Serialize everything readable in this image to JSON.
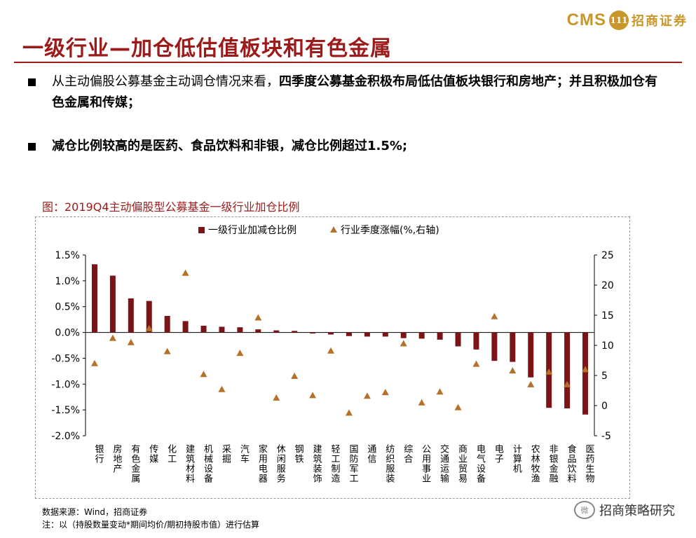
{
  "header": {
    "logo_latin": "CMS",
    "logo_seal": "111",
    "logo_cn": "招商证券",
    "title": "一级行业—加仓低估值板块和有色金属"
  },
  "bullets": [
    {
      "normal": "从主动偏股公募基金主动调仓情况来看，",
      "bold": "四季度公募基金积极布局低估值板块银行和房地产；并且积极加仓有色金属和传媒；"
    },
    {
      "normal": "",
      "bold": "减仓比例较高的是医药、食品饮料和非银，减仓比例超过1.5%;"
    }
  ],
  "figure": {
    "title": "图：2019Q4主动偏股型公募基金一级行业加仓比例"
  },
  "chart_data": {
    "type": "bar",
    "legend": {
      "bar": "一级行业加减仓比例",
      "marker": "行业季度涨幅(%,右轴)",
      "placement": "top-center"
    },
    "categories": [
      "银行",
      "房地产",
      "有色金属",
      "传媒",
      "化工",
      "建筑材料",
      "机械设备",
      "采掘",
      "汽车",
      "家用电器",
      "休闲服务",
      "钢铁",
      "建筑装饰",
      "轻工制造",
      "国防军工",
      "通信",
      "纺织服装",
      "综合",
      "公用事业",
      "交通运输",
      "商业贸易",
      "电气设备",
      "电子",
      "计算机",
      "农林牧渔",
      "非银金融",
      "食品饮料",
      "医药生物"
    ],
    "series": [
      {
        "name": "一级行业加减仓比例",
        "axis": "left",
        "unit": "%",
        "values": [
          1.32,
          1.1,
          0.66,
          0.61,
          0.32,
          0.22,
          0.13,
          0.11,
          0.1,
          0.06,
          0.04,
          0.03,
          -0.02,
          -0.04,
          -0.07,
          -0.08,
          -0.08,
          -0.11,
          -0.12,
          -0.14,
          -0.27,
          -0.33,
          -0.55,
          -0.57,
          -0.87,
          -1.46,
          -1.47,
          -1.59
        ]
      },
      {
        "name": "行业季度涨幅(%,右轴)",
        "axis": "right",
        "values": [
          7.0,
          11.2,
          10.5,
          12.8,
          9.0,
          22.0,
          5.2,
          2.7,
          8.7,
          14.6,
          1.3,
          4.9,
          1.7,
          9.1,
          -1.2,
          1.6,
          2.2,
          10.3,
          0.5,
          2.3,
          -0.3,
          6.9,
          14.8,
          5.8,
          3.5,
          5.6,
          3.5,
          6.0
        ]
      }
    ],
    "ylim_left": [
      -2.0,
      1.5
    ],
    "yticks_left": [
      "1.5%",
      "1.0%",
      "0.5%",
      "0.0%",
      "-0.5%",
      "-1.0%",
      "-1.5%",
      "-2.0%"
    ],
    "ylim_right": [
      -5,
      25
    ],
    "yticks_right": [
      "25",
      "20",
      "15",
      "10",
      "5",
      "0",
      "-5"
    ],
    "colors": {
      "bar": "#7b1416",
      "marker": "#b5702a"
    }
  },
  "footer": {
    "source": "数据来源：Wind，招商证券",
    "note": "注：以（持股数量变动*期间均价/期初持股市值）进行估算",
    "wechat_badge": "微",
    "wechat_account": "招商策略研究"
  }
}
